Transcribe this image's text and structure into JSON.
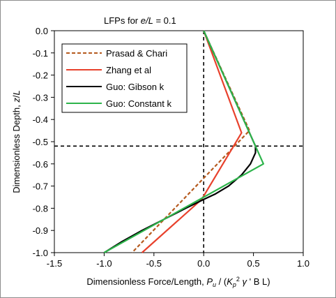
{
  "chart_data": {
    "type": "line",
    "title": "LFPs for e/L = 0.1",
    "title_parts": {
      "prefix": "LFPs for ",
      "italic": "e/L",
      "suffix": " = 0.1"
    },
    "xlabel": "Dimensionless Force/Length, Pu / (Kp² γ' B L)",
    "xlabel_parts": {
      "pre": "Dimensionless Force/Length, ",
      "P": "P",
      "u": "u",
      "mid": " / (",
      "K": "K",
      "p2": "p",
      "sup": "2",
      "g": " γ",
      "rest": " ' B L)"
    },
    "ylabel": "Dimensionless Depth, z/L",
    "ylabel_parts": {
      "pre": "Dimensionless Depth, ",
      "z": "z",
      "slash": "/",
      "L": "L"
    },
    "xlim": [
      -1.5,
      1.0
    ],
    "ylim": [
      -1.0,
      0.0
    ],
    "x_ticks": [
      "-1.5",
      "-1.0",
      "-0.5",
      "0.0",
      "0.5",
      "1.0"
    ],
    "x_tick_values": [
      -1.5,
      -1.0,
      -0.5,
      0.0,
      0.5,
      1.0
    ],
    "y_ticks": [
      "0.0",
      "-0.1",
      "-0.2",
      "-0.3",
      "-0.4",
      "-0.5",
      "-0.6",
      "-0.7",
      "-0.8",
      "-0.9",
      "-1.0"
    ],
    "y_tick_values": [
      0.0,
      -0.1,
      -0.2,
      -0.3,
      -0.4,
      -0.5,
      -0.6,
      -0.7,
      -0.8,
      -0.9,
      -1.0
    ],
    "reference_lines": {
      "vertical_x": 0.0,
      "horizontal_y": -0.52
    },
    "legend_position": "top-left",
    "series": [
      {
        "name": "Prasad & Chari",
        "color": "#b55a1e",
        "dashed": true,
        "x": [
          0.0,
          0.46,
          -0.72
        ],
        "y": [
          0.0,
          -0.45,
          -1.0
        ]
      },
      {
        "name": "Zhang et al",
        "color": "#e8412c",
        "dashed": false,
        "x": [
          0.0,
          0.38,
          -0.02,
          -0.62
        ],
        "y": [
          0.0,
          -0.46,
          -0.76,
          -1.0
        ]
      },
      {
        "name": "Guo: Gibson k",
        "color": "#000000",
        "dashed": false,
        "x": [
          0.0,
          0.52,
          0.52,
          0.47,
          0.38,
          0.25,
          0.12,
          0.0,
          -0.18,
          -0.4,
          -0.62,
          -0.82,
          -1.0
        ],
        "y": [
          0.0,
          -0.52,
          -0.55,
          -0.6,
          -0.65,
          -0.7,
          -0.735,
          -0.76,
          -0.8,
          -0.85,
          -0.9,
          -0.95,
          -1.0
        ]
      },
      {
        "name": "Guo: Constant k",
        "color": "#2db44b",
        "dashed": false,
        "x": [
          0.0,
          0.52,
          0.6,
          -1.0
        ],
        "y": [
          0.0,
          -0.52,
          -0.6,
          -1.0
        ]
      }
    ]
  }
}
